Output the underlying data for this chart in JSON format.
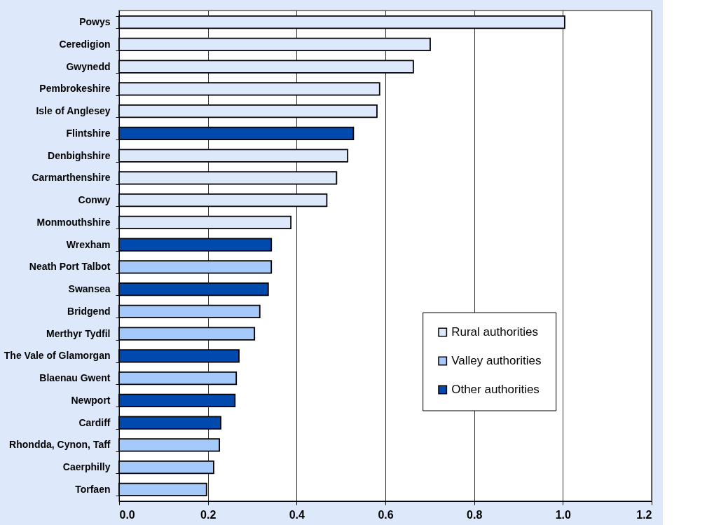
{
  "chart_data": {
    "type": "bar",
    "orientation": "horizontal",
    "categories": [
      "Powys",
      "Ceredigion",
      "Gwynedd",
      "Pembrokeshire",
      "Isle of Anglesey",
      "Flintshire",
      "Denbighshire",
      "Carmarthenshire",
      "Conwy",
      "Monmouthshire",
      "Wrexham",
      "Neath Port Talbot",
      "Swansea",
      "Bridgend",
      "Merthyr Tydfil",
      "The Vale of Glamorgan",
      "Blaenau Gwent",
      "Newport",
      "Cardiff",
      "Rhondda, Cynon, Taff",
      "Caerphilly",
      "Torfaen"
    ],
    "series": [
      {
        "name": "Rural authorities",
        "color": "#dde9fb",
        "values": [
          1.004,
          0.701,
          0.663,
          0.587,
          0.581,
          null,
          0.515,
          0.49,
          0.468,
          0.387,
          null,
          null,
          null,
          null,
          null,
          null,
          null,
          null,
          null,
          null,
          null,
          null
        ]
      },
      {
        "name": "Valley authorities",
        "color": "#a4c9fa",
        "values": [
          null,
          null,
          null,
          null,
          null,
          null,
          null,
          null,
          null,
          null,
          null,
          0.343,
          null,
          0.317,
          0.305,
          null,
          0.264,
          null,
          null,
          0.226,
          0.213,
          0.197
        ]
      },
      {
        "name": "Other authorities",
        "color": "#004aad",
        "values": [
          null,
          null,
          null,
          null,
          null,
          0.528,
          null,
          null,
          null,
          null,
          0.343,
          null,
          0.336,
          null,
          null,
          0.27,
          null,
          0.261,
          0.229,
          null,
          null,
          null
        ]
      }
    ],
    "xlim": [
      0,
      1.2
    ],
    "xticks": [
      {
        "value": 0,
        "label": "0.0"
      },
      0.2,
      0.4,
      0.6,
      0.8,
      {
        "value": 1,
        "label": "1.0"
      },
      1.2
    ],
    "grid": "x",
    "legend": "bottom right"
  }
}
